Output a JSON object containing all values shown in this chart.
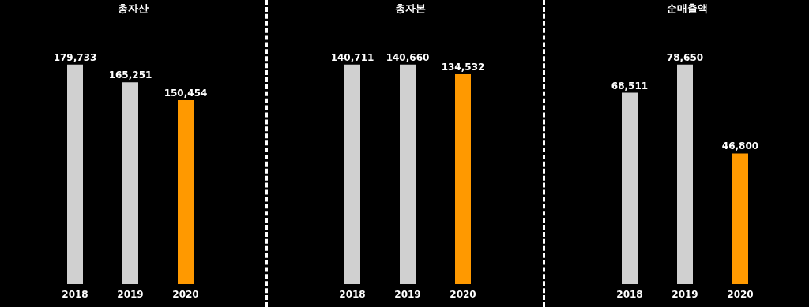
{
  "chart_data": [
    {
      "type": "bar",
      "title": "총자산",
      "categories": [
        "2018",
        "2019",
        "2020"
      ],
      "values": [
        179733,
        165251,
        150454
      ],
      "colors": [
        "#d0d0d0",
        "#d0d0d0",
        "#ff9900"
      ],
      "value_labels": [
        "179,733",
        "165,251",
        "150,454"
      ]
    },
    {
      "type": "bar",
      "title": "총자본",
      "categories": [
        "2018",
        "2019",
        "2020"
      ],
      "values": [
        140711,
        140660,
        134532
      ],
      "colors": [
        "#d0d0d0",
        "#d0d0d0",
        "#ff9900"
      ],
      "value_labels": [
        "140,711",
        "140,660",
        "134,532"
      ]
    },
    {
      "type": "bar",
      "title": "순매출액",
      "categories": [
        "2018",
        "2019",
        "2020"
      ],
      "values": [
        68511,
        78650,
        46800
      ],
      "colors": [
        "#d0d0d0",
        "#d0d0d0",
        "#ff9900"
      ],
      "value_labels": [
        "68,511",
        "78,650",
        "46,800"
      ]
    }
  ]
}
